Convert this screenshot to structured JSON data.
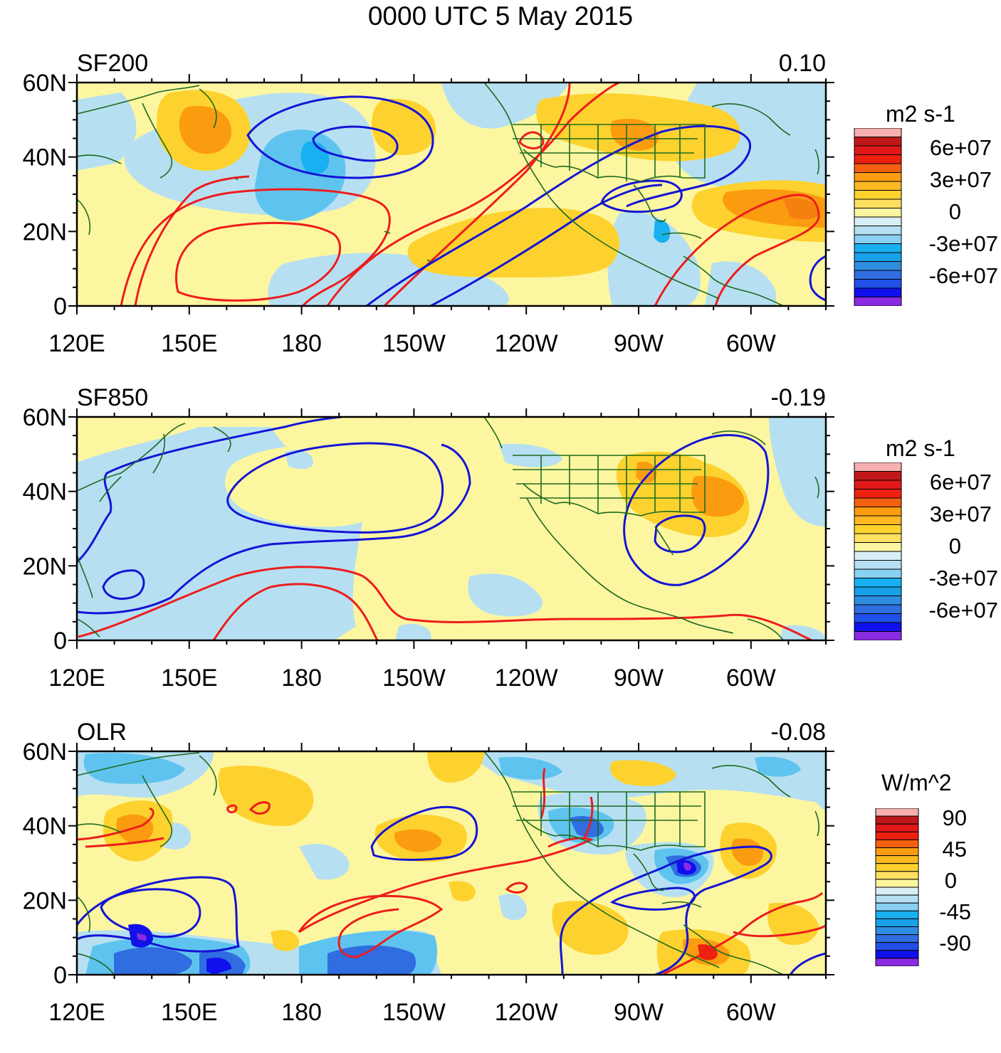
{
  "title": "0000 UTC 5 May 2015",
  "x_ticks": [
    "120E",
    "150E",
    "180",
    "150W",
    "120W",
    "90W",
    "60W"
  ],
  "y_ticks": [
    "0",
    "20N",
    "40N",
    "60N"
  ],
  "colors": {
    "neg4": "#8a2be2",
    "neg3": "#1010ee",
    "neg2": "#2f6de0",
    "neg1": "#18b0f0",
    "neg0": "#b6e0f2",
    "pos0": "#fdf6a0",
    "pos1": "#fdd22f",
    "pos2": "#fb9c10",
    "pos3": "#ee2010",
    "pos4": "#c01818",
    "pos5": "#f6b0b0",
    "contour_pos": "#ee1c1c",
    "contour_neg": "#1414d6",
    "coast": "#1e6a1e"
  },
  "panels": [
    {
      "name": "SF200",
      "correlation": "0.10",
      "units": "m2 s-1",
      "colorbar_labels": [
        "6e+07",
        "3e+07",
        "0",
        "-3e+07",
        "-6e+07"
      ]
    },
    {
      "name": "SF850",
      "correlation": "-0.19",
      "units": "m2 s-1",
      "colorbar_labels": [
        "6e+07",
        "3e+07",
        "0",
        "-3e+07",
        "-6e+07"
      ]
    },
    {
      "name": "OLR",
      "correlation": "-0.08",
      "units": "W/m^2",
      "colorbar_labels": [
        "90",
        "45",
        "0",
        "-45",
        "-90"
      ]
    }
  ]
}
